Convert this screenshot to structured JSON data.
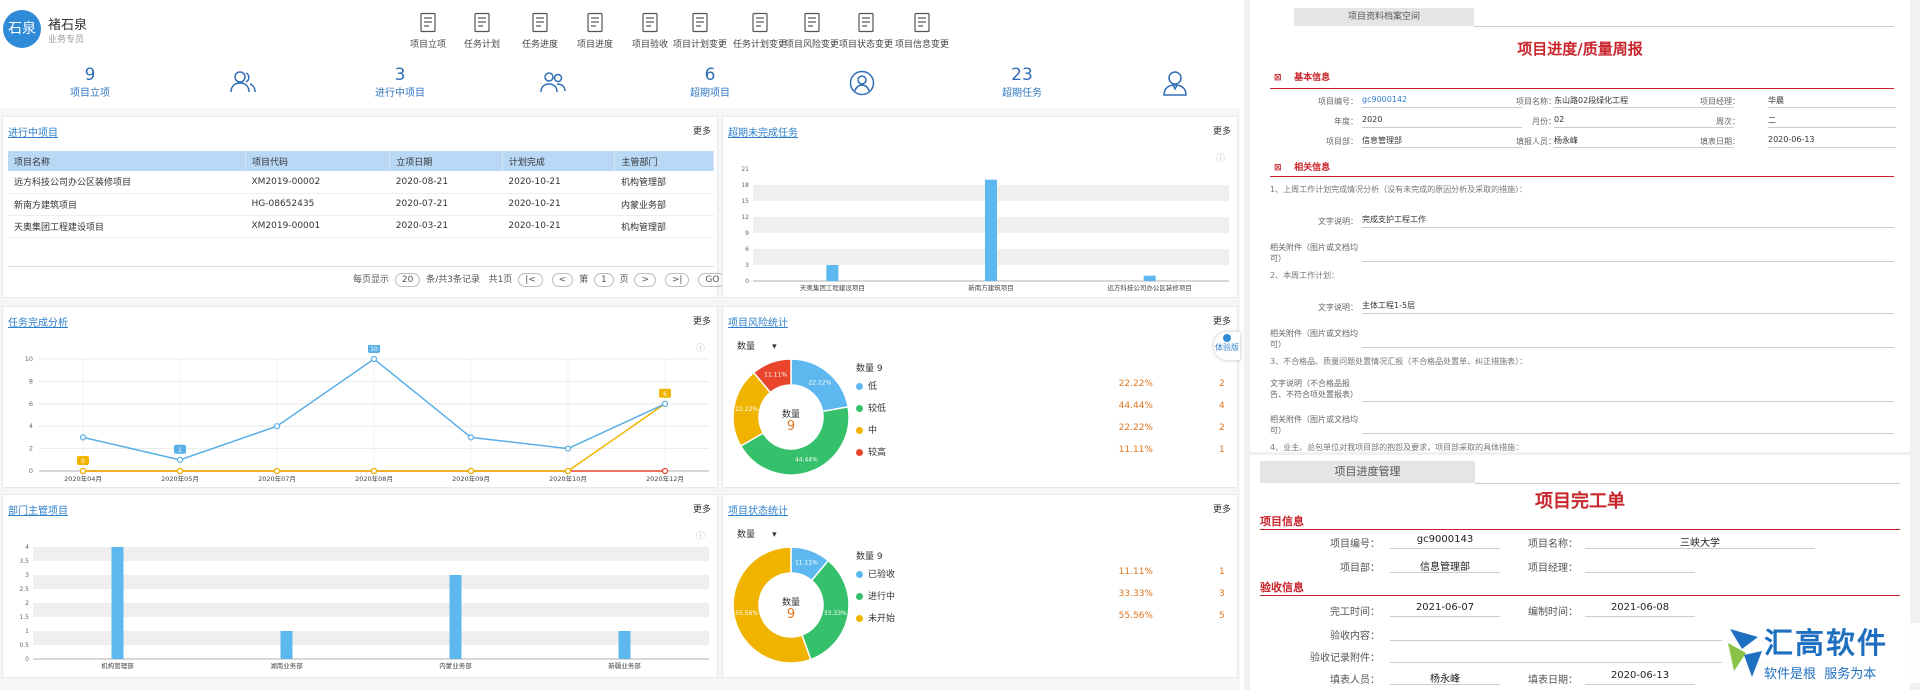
{
  "user": {
    "avatar_text": "石泉",
    "name": "褚石泉",
    "role": "业务专员"
  },
  "quick_menu": [
    "项目立项",
    "任务计划",
    "任务进度",
    "项目进度",
    "项目验收",
    "项目计划变更",
    "任务计划变更",
    "项目风险变更",
    "项目状态变更",
    "项目信息变更"
  ],
  "stats": [
    {
      "value": "9",
      "label": "项目立项"
    },
    {
      "value": "3",
      "label": "进行中项目"
    },
    {
      "value": "6",
      "label": "超期项目"
    },
    {
      "value": "23",
      "label": "超期任务"
    }
  ],
  "more_label": "更多",
  "ongoing": {
    "title": "进行中项目",
    "columns": [
      "项目名称",
      "项目代码",
      "立项日期",
      "计划完成",
      "主管部门"
    ],
    "rows": [
      [
        "远方科技公司办公区装修项目",
        "XM2019-00002",
        "2020-08-21",
        "2020-10-21",
        "机构管理部"
      ],
      [
        "新南方建筑项目",
        "HG-08652435",
        "2020-07-21",
        "2020-10-21",
        "内蒙业务部"
      ],
      [
        "天奥集团工程建设项目",
        "XM2019-00001",
        "2020-03-21",
        "2020-10-21",
        "机构管理部"
      ]
    ],
    "pager": {
      "prefix": "每页显示",
      "size": "20",
      "suffix": "条/共3条记录",
      "total": "共1页",
      "page_pre": "第",
      "page": "1",
      "page_post": "页",
      "go": "GO"
    }
  },
  "overdue": {
    "title": "超期未完成任务",
    "chart_data": {
      "type": "bar",
      "categories": [
        "天奥集团工程建设项目",
        "新南方建筑项目",
        "远方科技公司办公区装修项目"
      ],
      "values": [
        3,
        19,
        1
      ],
      "ylim": [
        0,
        21
      ],
      "yticks": [
        0,
        3,
        6,
        9,
        12,
        15,
        18,
        21
      ]
    }
  },
  "task_analysis": {
    "title": "任务完成分析",
    "chart_data": {
      "type": "line",
      "x": [
        "2020年04月",
        "2020年05月",
        "2020年07月",
        "2020年08月",
        "2020年09月",
        "2020年10月",
        "2020年12月"
      ],
      "series": [
        {
          "values": [
            3,
            1,
            4,
            10,
            3,
            2,
            6
          ],
          "color": "#5aaee8"
        },
        {
          "values": [
            0,
            0,
            0,
            0,
            0,
            0,
            6
          ],
          "color": "#f0b400"
        },
        {
          "values": [
            0,
            0,
            0,
            0,
            0,
            0,
            0
          ],
          "color": "#e8452c"
        }
      ],
      "point_labels": [
        {
          "series": 1,
          "index": 0,
          "text": "0"
        },
        {
          "series": 0,
          "index": 1,
          "text": "1"
        },
        {
          "series": 0,
          "index": 3,
          "text": "10"
        },
        {
          "series": 1,
          "index": 6,
          "text": "6"
        }
      ],
      "ylim": [
        0,
        10
      ],
      "yticks": [
        0,
        2,
        4,
        6,
        8,
        10
      ]
    }
  },
  "risk": {
    "title": "项目风险统计",
    "select": "数量",
    "center_label": "数量",
    "center_value": "9",
    "legend_title": "数量 9",
    "chart_data": {
      "type": "pie",
      "slices": [
        {
          "name": "低",
          "value": 2,
          "pct": "22.22%",
          "color": "#5cb8ee"
        },
        {
          "name": "较低",
          "value": 4,
          "pct": "44.44%",
          "color": "#35c06b"
        },
        {
          "name": "中",
          "value": 2,
          "pct": "22.22%",
          "color": "#f0b400"
        },
        {
          "name": "较高",
          "value": 1,
          "pct": "11.11%",
          "color": "#e8452c"
        }
      ]
    }
  },
  "float_btn": "体验版",
  "dept": {
    "title": "部门主管项目",
    "chart_data": {
      "type": "bar",
      "categories": [
        "机构管理部",
        "湖南业务部",
        "内蒙业务部",
        "新疆业务部"
      ],
      "values": [
        4,
        1,
        3,
        1
      ],
      "ylim": [
        0,
        4
      ],
      "yticks": [
        0,
        0.5,
        1,
        1.5,
        2,
        2.5,
        3,
        3.5,
        4
      ]
    }
  },
  "status": {
    "title": "项目状态统计",
    "select": "数量",
    "center_label": "数量",
    "center_value": "9",
    "legend_title": "数量 9",
    "chart_data": {
      "type": "pie",
      "slices": [
        {
          "name": "已验收",
          "value": 1,
          "pct": "11.11%",
          "color": "#5cb8ee"
        },
        {
          "name": "进行中",
          "value": 3,
          "pct": "33.33%",
          "color": "#35c06b"
        },
        {
          "name": "未开始",
          "value": 5,
          "pct": "55.56%",
          "color": "#f0b400"
        }
      ]
    }
  },
  "weekly": {
    "tab": "项目资料档案空间",
    "title": "项目进度/质量周报",
    "basic": "基本信息",
    "fields": [
      {
        "label": "项目编号：",
        "value": "gc9000142"
      },
      {
        "label": "项目名称：",
        "value": "东山路02段绿化工程"
      },
      {
        "label": "项目经理：",
        "value": "华晨"
      },
      {
        "label": "年度：",
        "value": "2020"
      },
      {
        "label": "月份：",
        "value": "02"
      },
      {
        "label": "周次：",
        "value": "二"
      },
      {
        "label": "项目部：",
        "value": "信息管理部"
      },
      {
        "label": "填报人员：",
        "value": "杨永峰"
      },
      {
        "label": "填表日期：",
        "value": "2020-06-13"
      }
    ],
    "related": "相关信息",
    "q1": "1、上周工作计划完成情况分析（没有未完成的原因分析及采取的措施）：",
    "text_label": "文字说明：",
    "q1_text": "完成支护工程工作",
    "attach_label": "相关附件（图片或文档均可）",
    "q2": "2、本周工作计划：",
    "q2_text": "主体工程1-5层",
    "q3": "3、不合格品、质量问题处置情况汇报（不合格品处置单、纠正措施表）：",
    "q3_label": "文字说明（不合格品报告、不符合项处置报表）",
    "q4": "4、业主、总包单位对我项目部的抱怨及要求，项目部采取的具体措施："
  },
  "completion": {
    "tab": "项目进度管理",
    "title": "项目完工单",
    "sec1": "项目信息",
    "f_code_l": "项目编号：",
    "f_code_v": "gc9000143",
    "f_name_l": "项目名称：",
    "f_name_v": "三峡大学",
    "f_dept_l": "项目部：",
    "f_dept_v": "信息管理部",
    "f_mgr_l": "项目经理：",
    "f_mgr_v": "",
    "sec2": "验收信息",
    "f_done_l": "完工时间：",
    "f_done_v": "2021-06-07",
    "f_made_l": "编制时间：",
    "f_made_v": "2021-06-08",
    "f_content_l": "验收内容：",
    "f_attach_l": "验收记录附件：",
    "f_fill_l": "填表人员：",
    "f_fill_v": "杨永峰",
    "f_date_l": "填表日期：",
    "f_date_v": "2020-06-13"
  },
  "brand": {
    "name": "汇高软件",
    "slogan": "软件是根  服务为本",
    "color": "#1f6fc0"
  }
}
